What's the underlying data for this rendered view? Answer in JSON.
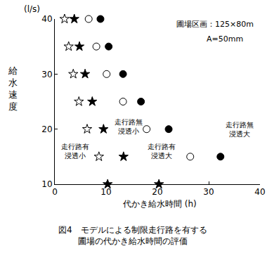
{
  "chart_data": {
    "type": "scatter",
    "title": "図4　モデルによる制限走行路を有する\n圃場の代かき給水時間の評価",
    "xlabel": "代かき給水時間 (h)",
    "ylabel": "給水速度",
    "annotations": [
      "(l/s)",
      "圃場区画：125×80m",
      "A=50mm"
    ],
    "xlim": [
      0,
      40
    ],
    "xticks": [
      0,
      10,
      20,
      30,
      40
    ],
    "ylim": [
      10,
      40
    ],
    "yticks": [
      10,
      20,
      30,
      40
    ],
    "grid": false,
    "series": [
      {
        "name": "走行路有\n浸透小",
        "marker": "star-open",
        "color": "#000000",
        "x": [
          1.9,
          2.7,
          3.6,
          4.7,
          6.3,
          8.6
        ],
        "values": [
          40,
          35,
          30,
          25,
          20,
          15
        ]
      },
      {
        "name": "走行路無\n浸透小",
        "marker": "star",
        "color": "#000000",
        "x": [
          3.8,
          4.8,
          5.9,
          7.3,
          9.5,
          13.4,
          10.3,
          20.3
        ],
        "values": [
          40,
          35,
          30,
          25,
          20,
          15,
          10,
          10
        ]
      },
      {
        "name": "走行路有\n浸透大",
        "marker": "circle-open",
        "color": "#000000",
        "x": [
          6.6,
          8.1,
          10.1,
          13.3,
          17.9,
          26.4
        ],
        "values": [
          40,
          35,
          30,
          25,
          20,
          15
        ]
      },
      {
        "name": "走行路無\n浸透大",
        "marker": "circle",
        "color": "#000000",
        "x": [
          8.9,
          10.5,
          13.3,
          16.8,
          22.2,
          32.3
        ],
        "values": [
          40,
          35,
          30,
          25,
          20,
          15
        ]
      }
    ]
  }
}
